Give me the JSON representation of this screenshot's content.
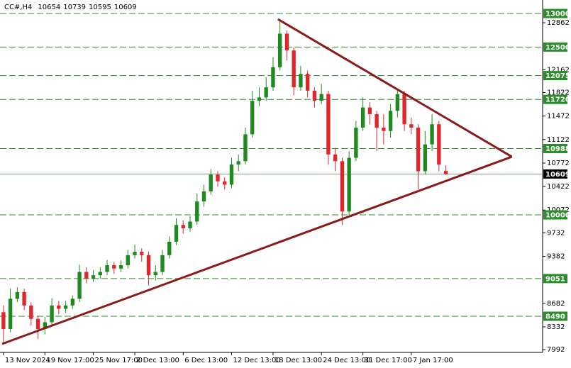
{
  "chart_data": {
    "type": "candlestick",
    "title": "CC#,H4",
    "open": [
      8550,
      8300,
      8750,
      8850,
      8650,
      8450,
      8300,
      8400,
      8650,
      8600,
      8650,
      8750,
      9150,
      9050,
      9100,
      9150,
      9250,
      9200,
      9250,
      9400,
      9450,
      9400,
      9100,
      9150,
      9400,
      9600,
      9850,
      9800,
      9900,
      10200,
      10350,
      10600,
      10500,
      10450,
      10750,
      10800,
      11200,
      11700,
      11750,
      11900,
      12200,
      12700,
      12450,
      11900,
      12100,
      11850,
      11700,
      11800,
      10900,
      10800,
      10050,
      10850,
      11300,
      11600,
      11500,
      11300,
      11250,
      11550,
      11800,
      11350,
      11300,
      10650,
      11050,
      11350,
      10654
    ],
    "high": [
      8650,
      8900,
      8920,
      8900,
      8700,
      8500,
      8480,
      8760,
      8720,
      8720,
      8800,
      9260,
      9220,
      9180,
      9220,
      9330,
      9300,
      9320,
      9480,
      9560,
      9500,
      9450,
      9250,
      9480,
      9680,
      9950,
      9920,
      9980,
      10320,
      10450,
      10680,
      10650,
      10560,
      10850,
      10900,
      11300,
      11850,
      11900,
      12050,
      12350,
      12890,
      12750,
      12500,
      12220,
      12150,
      11900,
      11950,
      11850,
      11000,
      10850,
      10950,
      11400,
      11750,
      11680,
      11550,
      11500,
      11650,
      11850,
      11850,
      11450,
      11350,
      11250,
      11500,
      11400,
      10739
    ],
    "low": [
      8100,
      8250,
      8700,
      8580,
      8350,
      8150,
      8220,
      8350,
      8520,
      8540,
      8600,
      8700,
      8980,
      9000,
      9050,
      9100,
      9120,
      9150,
      9200,
      9350,
      9300,
      8950,
      9020,
      9100,
      9350,
      9550,
      9720,
      9750,
      9850,
      10120,
      10300,
      10420,
      10380,
      10400,
      10650,
      10750,
      11150,
      11620,
      11700,
      11850,
      12150,
      12300,
      11780,
      11850,
      11750,
      11600,
      11650,
      10750,
      10650,
      9850,
      10000,
      10800,
      11250,
      11350,
      10950,
      11050,
      11150,
      11450,
      11250,
      11200,
      10380,
      10600,
      10950,
      10650,
      10595
    ],
    "close": [
      8300,
      8750,
      8850,
      8650,
      8450,
      8300,
      8400,
      8650,
      8600,
      8650,
      8750,
      9150,
      9050,
      9100,
      9150,
      9250,
      9200,
      9250,
      9400,
      9450,
      9400,
      9100,
      9150,
      9400,
      9600,
      9850,
      9800,
      9900,
      10200,
      10350,
      10600,
      10500,
      10450,
      10750,
      10800,
      11200,
      11700,
      11750,
      11900,
      12200,
      12700,
      12450,
      11900,
      12100,
      11850,
      11700,
      11800,
      10900,
      10800,
      10050,
      10850,
      11300,
      11600,
      11500,
      11300,
      11250,
      11550,
      11800,
      11350,
      11300,
      10650,
      11050,
      11350,
      10750,
      10609
    ],
    "up_color": "#1f8a1f",
    "down_color": "#e0262b",
    "xlim": [
      -0.5,
      78
    ],
    "xticks": [
      {
        "value": 0,
        "label": "13 Nov 2024"
      },
      {
        "value": 6,
        "label": "19 Nov 17:00"
      },
      {
        "value": 13,
        "label": "25 Nov 17:00"
      },
      {
        "value": 19,
        "label": "2 Dec 13:00"
      },
      {
        "value": 26,
        "label": "6 Dec 13:00"
      },
      {
        "value": 33,
        "label": "12 Dec 13:00"
      },
      {
        "value": 39,
        "label": "18 Dec 13:00"
      },
      {
        "value": 46,
        "label": "24 Dec 13:00"
      },
      {
        "value": 52,
        "label": "31 Dec 17:00"
      },
      {
        "value": 59,
        "label": "7 Jan 17:00"
      }
    ],
    "ylim": [
      7951,
      13201
    ],
    "yticks": [
      12862,
      12162,
      11822,
      11472,
      11122,
      10772,
      10422,
      10072,
      9732,
      9382,
      8682,
      8332,
      7992
    ],
    "levels": [
      13000,
      12500,
      12075,
      11720,
      10988,
      10000,
      9051,
      8490
    ],
    "level_color": "#2e8b2e",
    "trendlines": [
      {
        "color": "#8b1a1a",
        "x": [
          39.7,
          73.55
        ],
        "y": [
          12915,
          10866
        ]
      },
      {
        "color": "#8b1a1a",
        "x": [
          -0.19,
          73.55
        ],
        "y": [
          8078,
          10866
        ]
      }
    ]
  }
}
